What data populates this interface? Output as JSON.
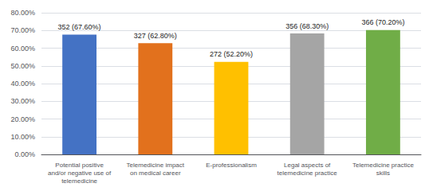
{
  "chart_data": {
    "type": "bar",
    "categories": [
      "Potential positive\nand/or negative use of\ntelemedicine",
      "Telemedicine impact\non medical career",
      "E-professionalism",
      "Legal aspects of\ntelemedicine practice",
      "Telemedicine practice\nskills"
    ],
    "values": [
      67.6,
      62.8,
      52.2,
      68.3,
      70.2
    ],
    "value_labels": [
      "352 (67.60%)",
      "327 (62.80%)",
      "272 (52.20%)",
      "356 (68.30%)",
      "366 (70.20%)"
    ],
    "colors": [
      "#4472C4",
      "#E2711D",
      "#FFC000",
      "#A5A5A5",
      "#70AD47"
    ],
    "ylim": [
      0,
      80
    ],
    "yticks": [
      {
        "value": 0,
        "label": "0.00%"
      },
      {
        "value": 10,
        "label": "10.00%"
      },
      {
        "value": 20,
        "label": "20.00%"
      },
      {
        "value": 30,
        "label": "30.00%"
      },
      {
        "value": 40,
        "label": "40.00%"
      },
      {
        "value": 50,
        "label": "50.00%"
      },
      {
        "value": 60,
        "label": "60.00%"
      },
      {
        "value": 70,
        "label": "70.00%"
      },
      {
        "value": 80,
        "label": "80.00%"
      }
    ],
    "grid": true,
    "data_labels": true
  }
}
